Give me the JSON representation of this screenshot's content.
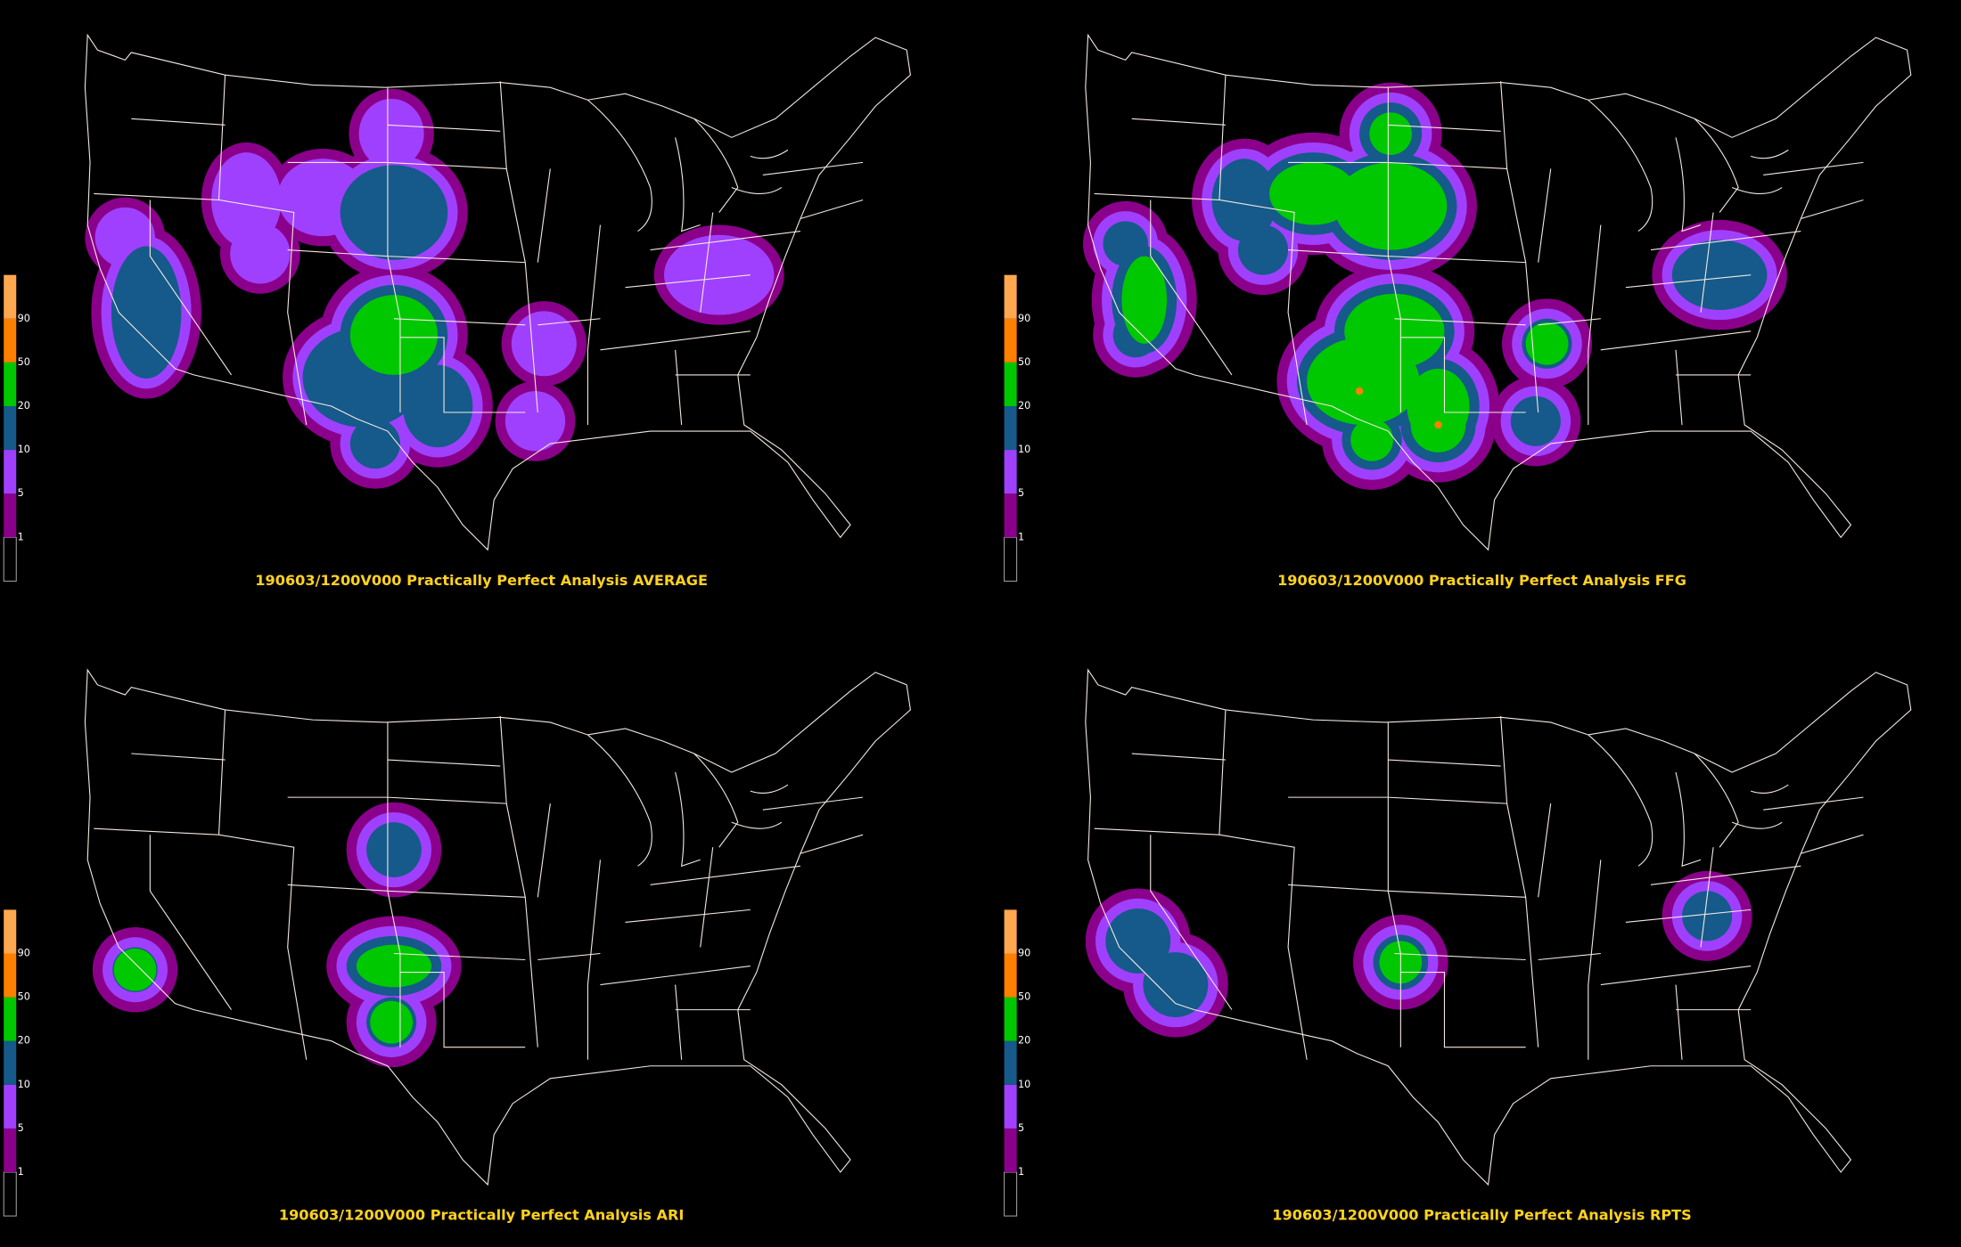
{
  "legend_colors": [
    "#000000",
    "#8b008b",
    "#a040ff",
    "#155a8a",
    "#00c800",
    "#ff7f00",
    "#ffa850"
  ],
  "panels": [
    {
      "title": "190603/1200V000 Practically Perfect Analysis AVERAGE",
      "levels": [
        1,
        5,
        10,
        20,
        50,
        90
      ]
    },
    {
      "title": "190603/1200V000 Practically Perfect Analysis FFG",
      "levels": [
        1,
        5,
        10,
        20,
        50,
        90
      ]
    },
    {
      "title": "190603/1200V000 Practically Perfect Analysis ARI",
      "levels": [
        1,
        5,
        10,
        20,
        50,
        90
      ]
    },
    {
      "title": "190603/1200V000 Practically Perfect Analysis RPTS",
      "levels": [
        1,
        5,
        10,
        20,
        50,
        90
      ]
    }
  ]
}
